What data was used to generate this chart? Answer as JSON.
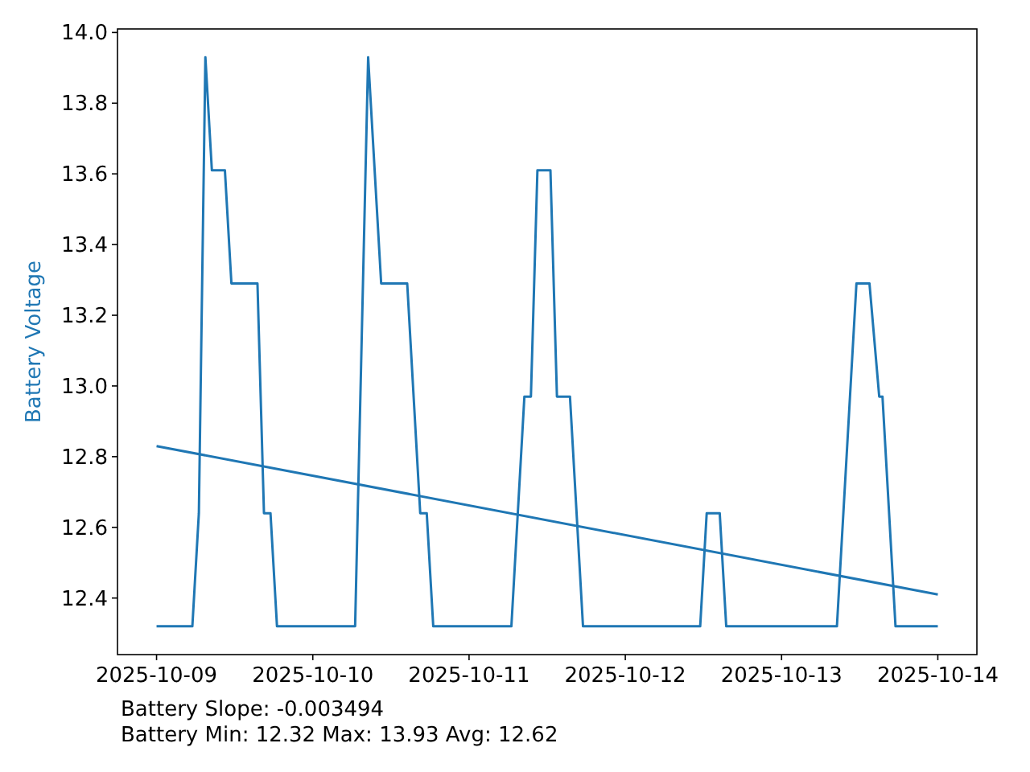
{
  "chart_data": {
    "type": "line",
    "ylabel": "Battery Voltage",
    "line_style": "solid",
    "x": [
      "2025-10-09T00:00",
      "2025-10-09T05:30",
      "2025-10-09T06:30",
      "2025-10-09T07:30",
      "2025-10-09T08:30",
      "2025-10-09T10:30",
      "2025-10-09T11:30",
      "2025-10-09T15:30",
      "2025-10-09T16:30",
      "2025-10-09T17:30",
      "2025-10-09T18:30",
      "2025-10-10T06:30",
      "2025-10-10T08:30",
      "2025-10-10T10:30",
      "2025-10-10T14:30",
      "2025-10-10T16:30",
      "2025-10-10T17:30",
      "2025-10-10T18:30",
      "2025-10-11T06:30",
      "2025-10-11T08:30",
      "2025-10-11T09:30",
      "2025-10-11T10:30",
      "2025-10-11T12:30",
      "2025-10-11T13:30",
      "2025-10-11T15:30",
      "2025-10-11T17:30",
      "2025-10-12T11:30",
      "2025-10-12T12:30",
      "2025-10-12T14:30",
      "2025-10-12T15:30",
      "2025-10-13T08:30",
      "2025-10-13T11:30",
      "2025-10-13T13:30",
      "2025-10-13T15:00",
      "2025-10-13T15:30",
      "2025-10-13T17:30",
      "2025-10-14T00:00"
    ],
    "series": [
      {
        "color": "#1f77b4",
        "values": [
          12.32,
          12.32,
          12.64,
          13.93,
          13.61,
          13.61,
          13.29,
          13.29,
          12.64,
          12.64,
          12.32,
          12.32,
          13.93,
          13.29,
          13.29,
          12.64,
          12.64,
          12.32,
          12.32,
          12.97,
          12.97,
          13.61,
          13.61,
          12.97,
          12.97,
          12.32,
          12.32,
          12.64,
          12.64,
          12.32,
          12.32,
          13.29,
          13.29,
          12.97,
          12.97,
          12.32,
          12.32
        ]
      },
      {
        "type": "line",
        "color": "#1f77b4",
        "x": [
          "2025-10-09T00:00",
          "2025-10-14T00:00"
        ],
        "values": [
          12.83,
          12.41
        ]
      }
    ],
    "xlim": [
      "2025-10-08T18:00",
      "2025-10-14T06:00"
    ],
    "xticks": [
      "2025-10-09",
      "2025-10-10",
      "2025-10-11",
      "2025-10-12",
      "2025-10-13",
      "2025-10-14"
    ],
    "ylim": [
      12.24,
      14.01
    ],
    "yticks": [
      12.4,
      12.6,
      12.8,
      {
        "value": 13,
        "label": "13.0"
      },
      13.2,
      13.4,
      13.6,
      13.8,
      {
        "value": 14,
        "label": "14.0"
      }
    ],
    "annotations": [
      "Battery Slope: -0.003494",
      "Battery Min: 12.32 Max: 13.93 Avg: 12.62"
    ],
    "grid": false
  }
}
